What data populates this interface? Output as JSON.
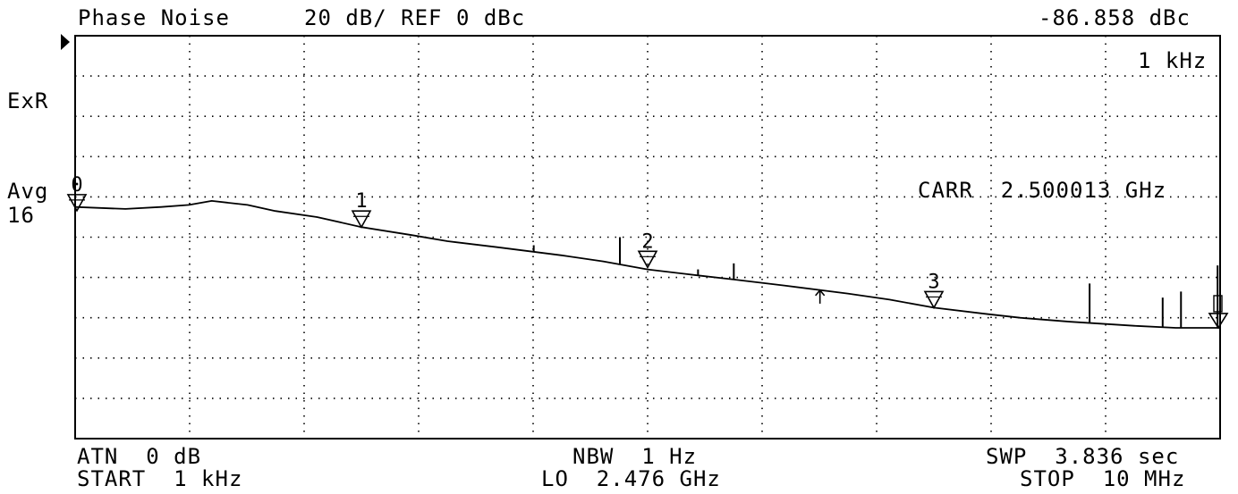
{
  "header": {
    "mode": "Phase Noise",
    "scale": "20 dB/ REF 0 dBc",
    "marker_readout": "-86.858 dBc"
  },
  "side": {
    "exr": "ExR",
    "avg": "Avg",
    "avg_count": "16"
  },
  "annotations": {
    "marker_freq": "1 kHz",
    "carrier": "CARR  2.500013 GHz"
  },
  "footer": {
    "atn": "ATN  0 dB",
    "start": "START  1 kHz",
    "nbw": "NBW  1 Hz",
    "lo": "LO  2.476 GHz",
    "swp": "SWP  3.836 sec",
    "stop": "STOP  10 MHz"
  },
  "chart_data": {
    "type": "line",
    "x_scale": "log",
    "xlim": [
      1000,
      10000000
    ],
    "ylim": [
      -200,
      0
    ],
    "grid": true,
    "units": {
      "x": "Hz",
      "y": "dBc"
    },
    "series": [
      {
        "x": [
          1000,
          1500,
          2000,
          2500,
          3000,
          4000,
          5000,
          7000,
          10000,
          15000,
          20000,
          30000,
          50000,
          70000,
          100000,
          150000,
          200000,
          300000,
          500000,
          700000,
          1000000,
          1500000,
          2000000,
          3000000,
          5000000,
          7000000,
          10000000
        ],
        "y": [
          -85,
          -86,
          -85,
          -84,
          -82,
          -84,
          -87,
          -90,
          -95,
          -99,
          -102,
          -105,
          -109,
          -112,
          -116,
          -119,
          -121,
          -124,
          -128,
          -131,
          -135,
          -138,
          -140,
          -142,
          -144,
          -145,
          -145
        ]
      }
    ],
    "spurs": [
      {
        "x": 40000,
        "y": -104
      },
      {
        "x": 80000,
        "y": -100
      },
      {
        "x": 150000,
        "y": -116
      },
      {
        "x": 200000,
        "y": -113
      },
      {
        "x": 3500000,
        "y": -123
      },
      {
        "x": 6300000,
        "y": -130
      },
      {
        "x": 7300000,
        "y": -127
      },
      {
        "x": 9800000,
        "y": -114
      }
    ],
    "markers": [
      {
        "label": "0",
        "x": 1000,
        "y": -86.858
      },
      {
        "label": "1",
        "x": 10000,
        "y": -95
      },
      {
        "label": "2",
        "x": 100000,
        "y": -115
      },
      {
        "label": "3",
        "x": 1000000,
        "y": -135
      }
    ],
    "end_marker": {
      "x": 10000000,
      "y": -145
    },
    "arrow_marker": {
      "x": 400000,
      "y": -133
    }
  }
}
